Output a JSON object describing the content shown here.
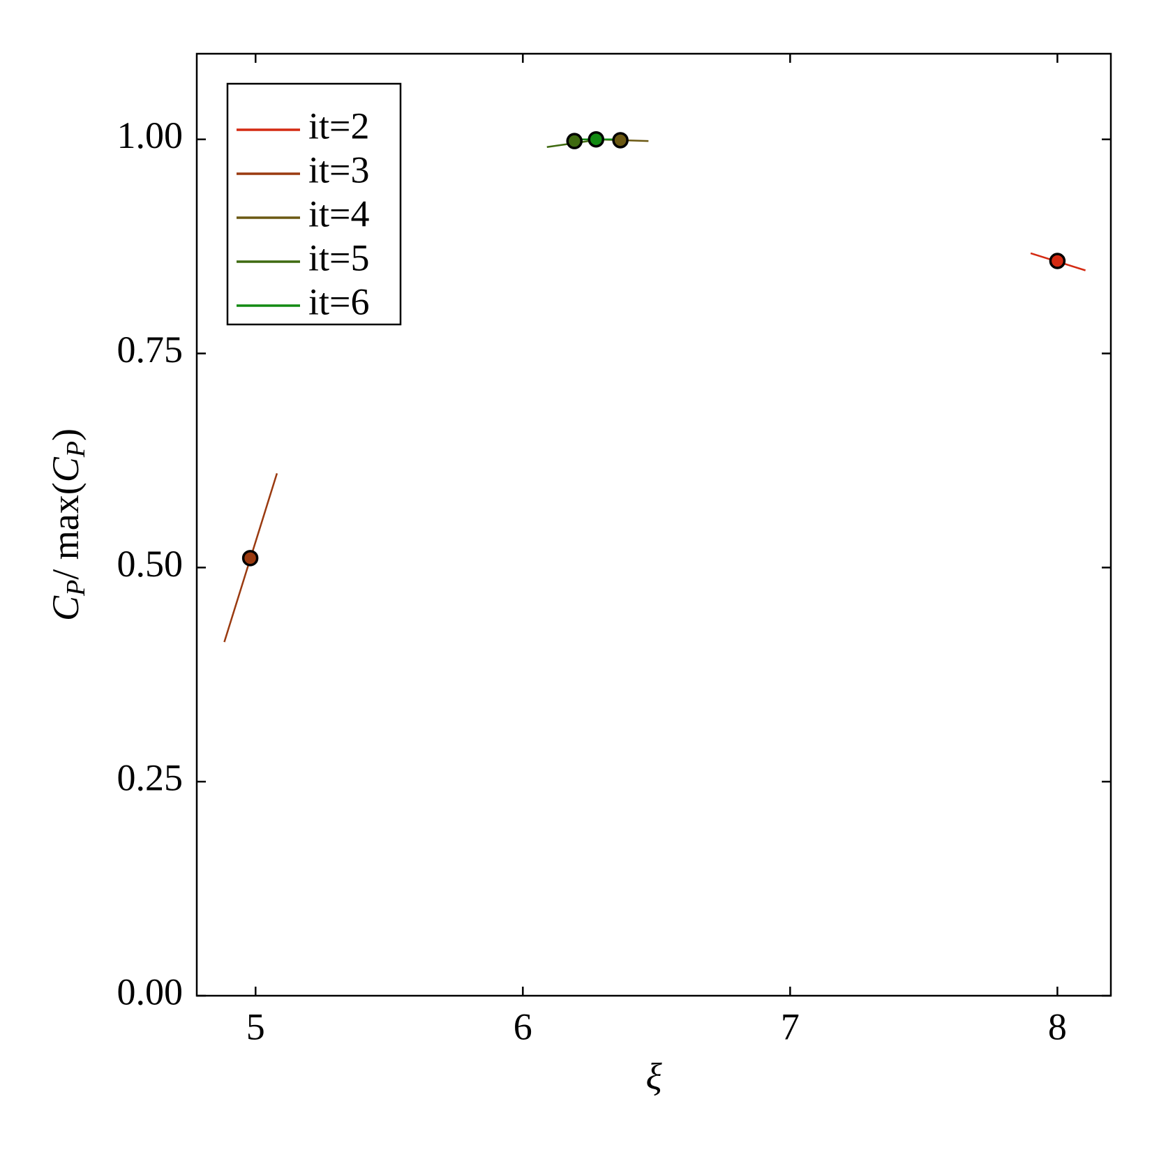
{
  "chart_data": {
    "type": "scatter",
    "xlabel": "ξ",
    "ylabel": [
      "C",
      "P",
      "/ max(",
      "C",
      "P",
      ")"
    ],
    "xlim": [
      4.78,
      8.2
    ],
    "ylim": [
      0,
      1.1
    ],
    "xticks": [
      5,
      6,
      7,
      8
    ],
    "yticks": [
      {
        "value": 0,
        "label": "0.00"
      },
      {
        "value": 0.25,
        "label": "0.25"
      },
      {
        "value": 0.5,
        "label": "0.50"
      },
      {
        "value": 0.75,
        "label": "0.75"
      },
      {
        "value": 1,
        "label": "1.00"
      }
    ],
    "legend": "upper left",
    "series": [
      {
        "name": "it=2",
        "color": "#d42a12",
        "x": [
          8.0
        ],
        "values": [
          0.858
        ],
        "tangent": {
          "x": [
            7.9,
            8.105
          ],
          "values": [
            0.867,
            0.847
          ]
        }
      },
      {
        "name": "it=3",
        "color": "#9a3a10",
        "x": [
          4.98
        ],
        "values": [
          0.511
        ],
        "tangent": {
          "x": [
            4.883,
            5.08
          ],
          "values": [
            0.413,
            0.61
          ]
        }
      },
      {
        "name": "it=4",
        "color": "#6b5812",
        "x": [
          6.365
        ],
        "values": [
          0.999
        ],
        "tangent": {
          "x": [
            6.27,
            6.47
          ],
          "values": [
            1.0,
            0.998
          ]
        }
      },
      {
        "name": "it=5",
        "color": "#3f6a10",
        "x": [
          6.193
        ],
        "values": [
          0.998
        ],
        "tangent": {
          "x": [
            6.09,
            6.29
          ],
          "values": [
            0.991,
            1.0
          ]
        }
      },
      {
        "name": "it=6",
        "color": "#128a12",
        "x": [
          6.274
        ],
        "values": [
          1.0
        ],
        "tangent": {
          "x": [
            6.174,
            6.374
          ],
          "values": [
            1.0,
            1.0
          ]
        }
      }
    ]
  }
}
